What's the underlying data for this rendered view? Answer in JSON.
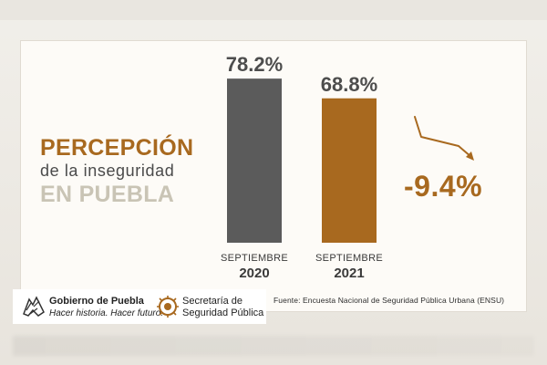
{
  "title": {
    "line1": "PERCEPCIÓN",
    "line2": "de la inseguridad",
    "line3": "EN PUEBLA"
  },
  "chart_data": {
    "type": "bar",
    "categories": [
      {
        "month": "SEPTIEMBRE",
        "year": "2020"
      },
      {
        "month": "SEPTIEMBRE",
        "year": "2021"
      }
    ],
    "values": [
      78.2,
      68.8
    ],
    "value_labels": [
      "78.2%",
      "68.8%"
    ],
    "unit": "%",
    "ylim": [
      0,
      100
    ],
    "grid": false,
    "bar_colors": [
      "#5b5b5b",
      "#a8691f"
    ],
    "change_label": "-9.4%",
    "change_color": "#a8691f"
  },
  "footer": {
    "gov_name": "Gobierno de Puebla",
    "gov_slogan": "Hacer historia. Hacer futuro.",
    "secretaria_line1": "Secretaría de",
    "secretaria_line2": "Seguridad Pública",
    "source": "Fuente: Encuesta Nacional de Seguridad Pública Urbana (ENSU)"
  },
  "icons": {
    "gov_logo": "gobierno-puebla-logo-icon",
    "sec_logo": "secretaria-seguridad-logo-icon",
    "trend": "trend-down-arrow-icon"
  }
}
